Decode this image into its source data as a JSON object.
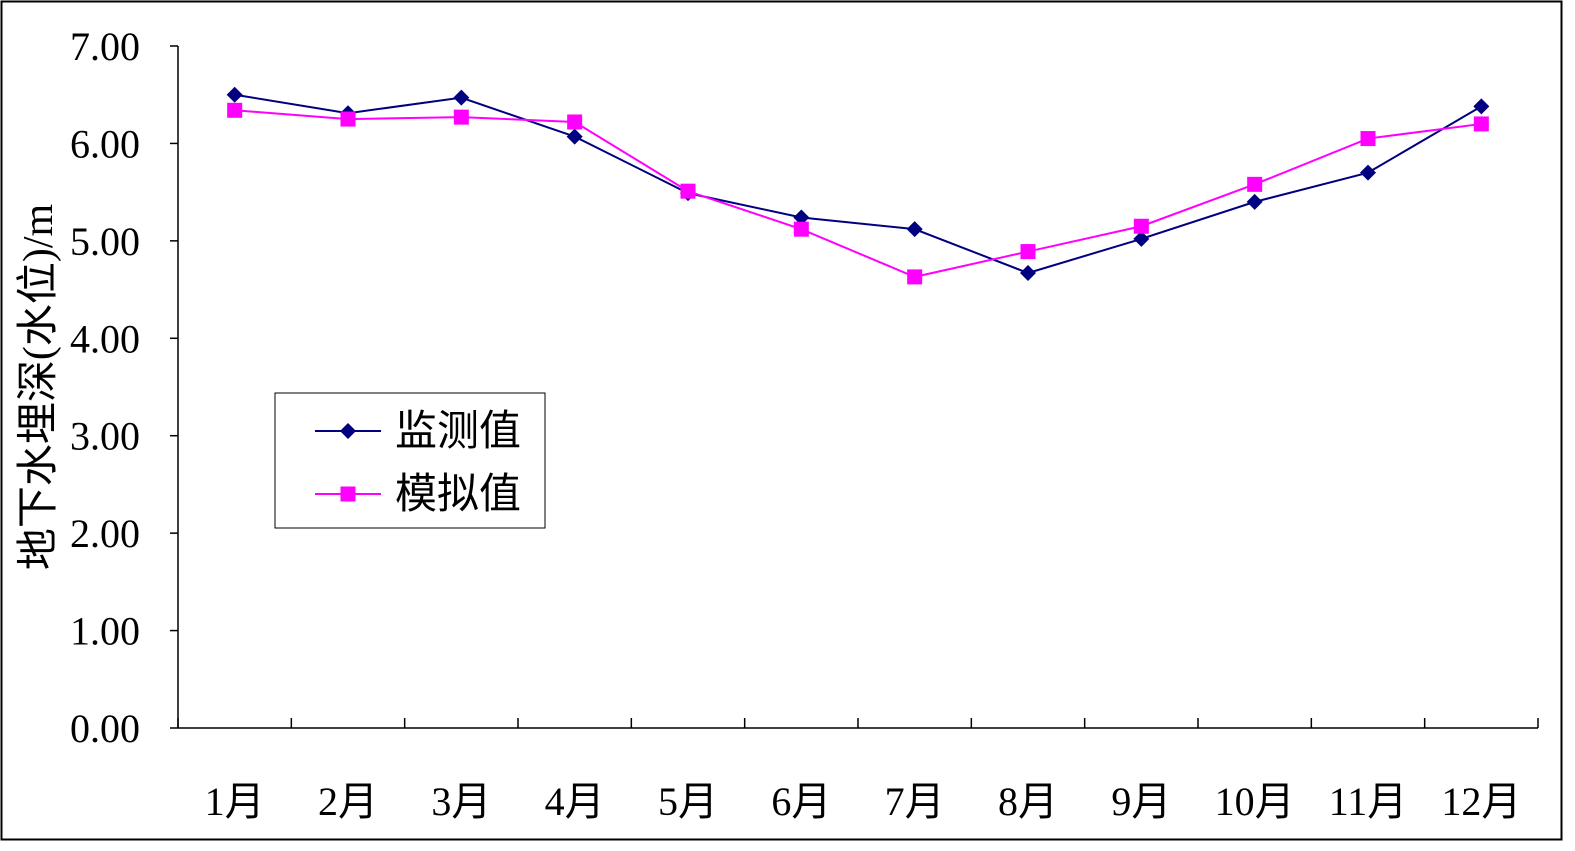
{
  "chart_data": {
    "type": "line",
    "title": "",
    "xlabel": "",
    "ylabel": "地下水埋深(水位)/m",
    "categories": [
      "1月",
      "2月",
      "3月",
      "4月",
      "5月",
      "6月",
      "7月",
      "8月",
      "9月",
      "10月",
      "11月",
      "12月"
    ],
    "ylim": [
      0,
      7
    ],
    "yticks": [
      "0.00",
      "1.00",
      "2.00",
      "3.00",
      "4.00",
      "5.00",
      "6.00",
      "7.00"
    ],
    "grid": false,
    "legend_position": "left-middle",
    "series": [
      {
        "name": "监测值",
        "color": "#000080",
        "marker": "diamond",
        "values": [
          6.5,
          6.31,
          6.47,
          6.07,
          5.49,
          5.24,
          5.12,
          4.67,
          5.02,
          5.4,
          5.7,
          6.38
        ]
      },
      {
        "name": "模拟值",
        "color": "#FF00FF",
        "marker": "square",
        "values": [
          6.34,
          6.25,
          6.27,
          6.22,
          5.51,
          5.12,
          4.63,
          4.89,
          5.15,
          5.58,
          6.05,
          6.2
        ]
      }
    ]
  }
}
